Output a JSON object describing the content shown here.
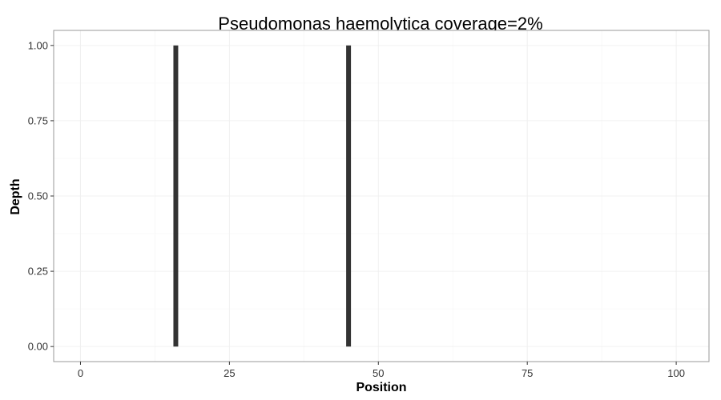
{
  "chart_data": {
    "type": "bar",
    "title": "Pseudomonas haemolytica coverage=2%",
    "xlabel": "Position",
    "ylabel": "Depth",
    "xlim": [
      -4.5,
      105.5
    ],
    "ylim": [
      -0.05,
      1.05
    ],
    "x_ticks": [
      0,
      25,
      50,
      75,
      100
    ],
    "y_ticks": [
      0.0,
      0.25,
      0.5,
      0.75,
      1.0
    ],
    "x_tick_labels": [
      "0",
      "25",
      "50",
      "75",
      "100"
    ],
    "y_tick_labels": [
      "0.00",
      "0.25",
      "0.50",
      "0.75",
      "1.00"
    ],
    "grid": true,
    "legend": "none",
    "x": [
      16,
      45
    ],
    "values": [
      1,
      1
    ],
    "bar_color": "#333333",
    "panel_border_color": "#999999",
    "grid_color": "#f0f0f0"
  }
}
